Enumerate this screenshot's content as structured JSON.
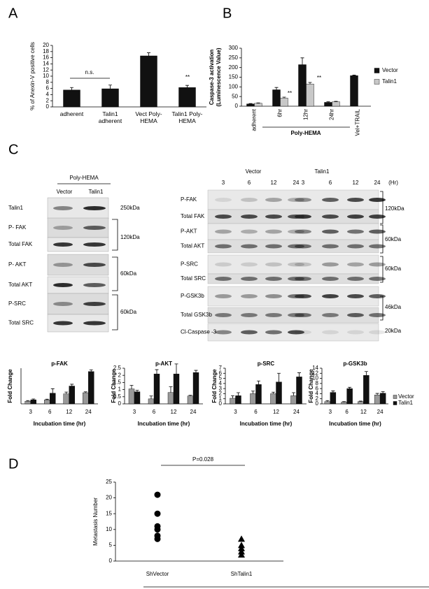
{
  "chart_data": [
    {
      "type": "bar",
      "panel": "A",
      "y_label": "% of Anexin-V positive cells",
      "categories": [
        "adherent",
        "Talin1 adherent",
        "Vect Poly-HEMA",
        "Talin1 Poly-HEMA"
      ],
      "values": [
        5.5,
        5.9,
        16.6,
        6.3
      ],
      "errors": [
        0.8,
        1.2,
        1.0,
        0.7
      ],
      "color": "#111111",
      "ylim": [
        0,
        20
      ],
      "yticks": [
        0,
        2,
        4,
        6,
        8,
        10,
        12,
        14,
        16,
        18,
        20
      ],
      "annotations": [
        "n.s.",
        "**"
      ]
    },
    {
      "type": "bar",
      "panel": "B",
      "y_label": [
        "Caspase-3 activation",
        "(Luminescence Value)"
      ],
      "categories": [
        "adherent",
        "6hr",
        "12hr",
        "24hr",
        "Vel+TRAIL"
      ],
      "group_label": "Poly-HEMA",
      "series": [
        {
          "name": "Vector",
          "color": "#111111",
          "values": [
            12,
            85,
            215,
            20,
            158
          ],
          "errors": [
            2,
            12,
            35,
            3,
            3
          ]
        },
        {
          "name": "Talin1",
          "color": "#c8c8c8",
          "values": [
            15,
            42,
            115,
            23,
            null
          ],
          "errors": [
            2,
            5,
            8,
            2,
            null
          ]
        }
      ],
      "ylim": [
        0,
        300
      ],
      "yticks": [
        0,
        50,
        100,
        150,
        200,
        250,
        300
      ],
      "legend": "right",
      "annotations": [
        "**",
        "**"
      ]
    },
    {
      "type": "bar",
      "title": "p-FAK",
      "y_label": "Fold Change",
      "x_label": "Incubation time (hr)",
      "categories": [
        "3",
        "6",
        "12",
        "24"
      ],
      "series": [
        {
          "color": "#999999",
          "values": [
            1.2,
            1.8,
            4.5,
            5.0
          ],
          "errors": [
            0.3,
            0.3,
            0.8,
            0.4
          ]
        },
        {
          "color": "#111111",
          "values": [
            1.8,
            4.8,
            8.0,
            14.5
          ],
          "errors": [
            0.4,
            2.0,
            0.8,
            0.8
          ]
        }
      ],
      "ylim": [
        0,
        16
      ]
    },
    {
      "type": "bar",
      "title": "p-AKT",
      "y_label": "Fold Change",
      "x_label": "Incubation time (hr)",
      "categories": [
        "3",
        "6",
        "12",
        "24"
      ],
      "series": [
        {
          "color": "#999999",
          "values": [
            1.05,
            0.35,
            0.8,
            0.55
          ],
          "errors": [
            0.25,
            0.2,
            0.4,
            0.05
          ]
        },
        {
          "color": "#111111",
          "values": [
            0.85,
            2.1,
            2.1,
            2.2
          ],
          "errors": [
            0.1,
            0.3,
            0.7,
            0.15
          ]
        }
      ],
      "ylim": [
        0,
        2.5
      ],
      "yticks": [
        0,
        0.5,
        1,
        1.5,
        2,
        2.5
      ]
    },
    {
      "type": "bar",
      "title": "p-SRC",
      "y_label": "Fold Change",
      "x_label": "Incubation time (hr)",
      "categories": [
        "3",
        "6",
        "12",
        "24"
      ],
      "series": [
        {
          "color": "#999999",
          "values": [
            1.1,
            2.0,
            2.0,
            1.6
          ],
          "errors": [
            0.5,
            0.5,
            0.3,
            0.6
          ]
        },
        {
          "color": "#111111",
          "values": [
            1.6,
            3.8,
            4.3,
            5.3
          ],
          "errors": [
            0.6,
            0.7,
            1.7,
            0.8
          ]
        }
      ],
      "ylim": [
        0,
        7
      ],
      "yticks": [
        0,
        1,
        2,
        3,
        4,
        5,
        6,
        7
      ]
    },
    {
      "type": "bar",
      "title": "p-GSK3b",
      "y_label": "Fold Change",
      "x_label": "Incubation time (hr)",
      "categories": [
        "3",
        "6",
        "12",
        "24"
      ],
      "series": [
        {
          "name": "Vector",
          "color": "#999999",
          "values": [
            0.9,
            0.7,
            0.9,
            3.5
          ],
          "errors": [
            0.4,
            0.2,
            0.2,
            0.6
          ]
        },
        {
          "name": "Talin1",
          "color": "#111111",
          "values": [
            4.5,
            6.0,
            11.2,
            4.2
          ],
          "errors": [
            0.6,
            0.5,
            1.5,
            0.6
          ]
        }
      ],
      "ylim": [
        0,
        14
      ],
      "yticks": [
        0,
        2,
        4,
        6,
        8,
        10,
        12,
        14
      ],
      "legend": "right"
    },
    {
      "type": "dot",
      "panel": "D",
      "y_label": "Metastasis Number",
      "categories": [
        "ShVector",
        "ShTalin1"
      ],
      "markers": [
        "circle",
        "triangle"
      ],
      "values": [
        [
          21,
          15,
          11,
          10,
          8,
          7
        ],
        [
          7,
          5,
          4,
          3,
          2
        ]
      ],
      "ylim": [
        0,
        25
      ],
      "yticks": [
        0,
        5,
        10,
        15,
        20,
        25
      ],
      "annotations": [
        "P=0.028"
      ]
    }
  ],
  "blots": {
    "panel": "C",
    "left": {
      "header": "Poly-HEMA",
      "lanes": [
        "Vector",
        "Talin1"
      ],
      "rows": [
        "Talin1",
        "P- FAK",
        "Total FAK",
        "P- AKT",
        "Total AKT",
        "P-SRC",
        "Total SRC"
      ],
      "sizes": [
        "250kDa",
        "120kDa",
        "60kDa",
        "60kDa"
      ]
    },
    "right": {
      "groups": [
        "Vector",
        "Talin1"
      ],
      "times": [
        "3",
        "6",
        "12",
        "24",
        "3",
        "6",
        "12",
        "24"
      ],
      "time_unit": "(Hr)",
      "rows": [
        "P-FAK",
        "Total FAK",
        "P-AKT",
        "Total AKT",
        "P-SRC",
        "Total  SRC",
        "P-GSK3b",
        "Total GSK3b",
        "Cl-Caspase -3"
      ],
      "sizes": [
        "120kDa",
        "60kDa",
        "60kDa",
        "46kDa",
        "20kDa"
      ]
    }
  }
}
